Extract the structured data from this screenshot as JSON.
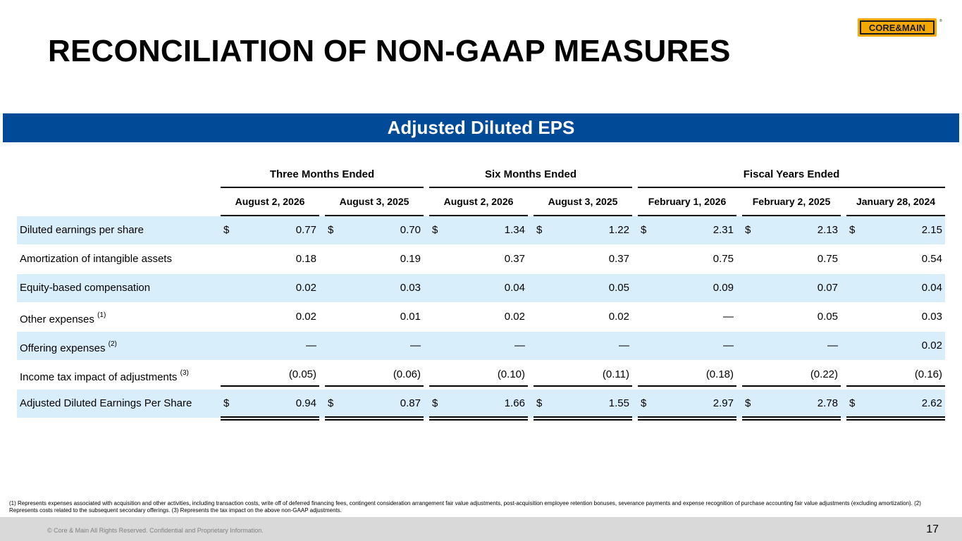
{
  "title": "RECONCILIATION OF NON-GAAP MEASURES",
  "logo": {
    "text": "CORE&MAIN",
    "registered": "®",
    "colors": {
      "badge": "#f5a800",
      "text": "#1a1a1a"
    }
  },
  "banner": "Adjusted Diluted EPS",
  "colors": {
    "banner": "#004a97",
    "row_shade": "#d9eefb",
    "footer": "#d9d9d9"
  },
  "groups": [
    "Three Months Ended",
    "Six Months Ended",
    "Fiscal Years Ended"
  ],
  "columns": [
    "August 2, 2026",
    "August 3, 2025",
    "August 2, 2026",
    "August 3, 2025",
    "February 1, 2026",
    "February 2, 2025",
    "January 28, 2024"
  ],
  "rows": [
    {
      "label": "Diluted earnings per share",
      "note": "",
      "dollar": "$",
      "values": [
        "0.77",
        "0.70",
        "1.34",
        "1.22",
        "2.31",
        "2.13",
        "2.15"
      ]
    },
    {
      "label": "Amortization of intangible assets",
      "note": "",
      "dollar": "",
      "values": [
        "0.18",
        "0.19",
        "0.37",
        "0.37",
        "0.75",
        "0.75",
        "0.54"
      ]
    },
    {
      "label": "Equity-based compensation",
      "note": "",
      "dollar": "",
      "values": [
        "0.02",
        "0.03",
        "0.04",
        "0.05",
        "0.09",
        "0.07",
        "0.04"
      ]
    },
    {
      "label": "Other expenses",
      "note": "(1)",
      "dollar": "",
      "values": [
        "0.02",
        "0.01",
        "0.02",
        "0.02",
        "—",
        "0.05",
        "0.03"
      ]
    },
    {
      "label": "Offering expenses",
      "note": "(2)",
      "dollar": "",
      "values": [
        "—",
        "—",
        "—",
        "—",
        "—",
        "—",
        "0.02"
      ]
    },
    {
      "label": "Income tax impact of adjustments",
      "note": "(3)",
      "dollar": "",
      "values": [
        "(0.05)",
        "(0.06)",
        "(0.10)",
        "(0.11)",
        "(0.18)",
        "(0.22)",
        "(0.16)"
      ]
    },
    {
      "label": "Adjusted Diluted Earnings Per Share",
      "note": "",
      "dollar": "$",
      "values": [
        "0.94",
        "0.87",
        "1.66",
        "1.55",
        "2.97",
        "2.78",
        "2.62"
      ]
    }
  ],
  "footnote": "(1) Represents expenses associated with acquisition and other activities, including transaction costs, write off of deferred financing fees, contingent consideration arrangement fair value adjustments, post-acquisition employee retention bonuses, severance payments and expense recognition of purchase accounting fair value adjustments (excluding amortization). (2) Represents costs related to the subsequent secondary offerings. (3) Represents the tax impact on the above non-GAAP adjustments.",
  "copyright": "© Core & Main  All Rights Reserved. Confidential and Proprietary Information.",
  "page_number": "17"
}
